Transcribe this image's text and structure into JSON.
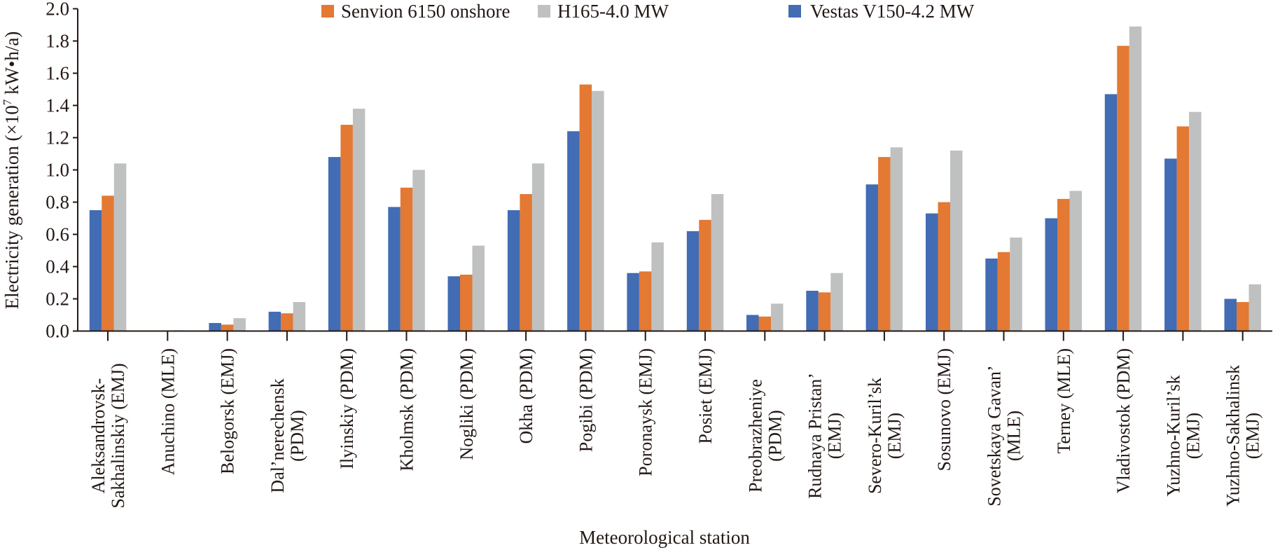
{
  "chart_data": {
    "type": "bar",
    "title": "",
    "xlabel": "Meteorological station",
    "ylabel_parts": {
      "prefix": "Electricity generation (×10",
      "exponent": "7",
      "suffix": " kW•h/a)"
    },
    "ylabel": "Electricity generation (×10^7 kW•h/a)",
    "ylim": [
      0,
      2.0
    ],
    "yticks": [
      "0.0",
      "0.2",
      "0.4",
      "0.6",
      "0.8",
      "1.0",
      "1.2",
      "1.4",
      "1.6",
      "1.8",
      "2.0"
    ],
    "grid": false,
    "legend_position": "top-center",
    "legend": [
      {
        "name": "Senvion 6150 onshore",
        "color": "#E37933"
      },
      {
        "name": "H165-4.0 MW",
        "color": "#BFC0C0"
      },
      {
        "name": "Vestas V150-4.2 MW",
        "color": "#426CB4"
      }
    ],
    "categories": [
      [
        "Aleksandrovsk-",
        "Sakhalinskiy (EMJ)"
      ],
      [
        "Anuchino (MLE)"
      ],
      [
        "Belogorsk (EMJ)"
      ],
      [
        "Dal’nerechensk",
        "(PDM)"
      ],
      [
        "Ilyinskiy (PDM)"
      ],
      [
        "Kholmsk (PDM)"
      ],
      [
        "Nogliki (PDM)"
      ],
      [
        "Okha (PDM)"
      ],
      [
        "Pogibi (PDM)"
      ],
      [
        "Poronaysk (EMJ)"
      ],
      [
        "Posiet (EMJ)"
      ],
      [
        "Preobrazheniye",
        "(PDM)"
      ],
      [
        "Rudnaya Pristan’",
        "(EMJ)"
      ],
      [
        "Severo-Kuril’sk",
        "(EMJ)"
      ],
      [
        "Sosunovo (EMJ)"
      ],
      [
        "Sovetskaya Gavan’",
        "(MLE)"
      ],
      [
        "Terney (MLE)"
      ],
      [
        "Vladivostok (PDM)"
      ],
      [
        "Yuzhno-Kuril’sk",
        "(EMJ)"
      ],
      [
        "Yuzhno-Sakhalinsk",
        "(EMJ)"
      ]
    ],
    "series": [
      {
        "name": "Vestas V150-4.2 MW",
        "color": "#426CB4",
        "values": [
          0.75,
          0.0,
          0.05,
          0.12,
          1.08,
          0.77,
          0.34,
          0.75,
          1.24,
          0.36,
          0.62,
          0.1,
          0.25,
          0.91,
          0.73,
          0.45,
          0.7,
          1.47,
          1.07,
          0.2
        ]
      },
      {
        "name": "Senvion 6150 onshore",
        "color": "#E37933",
        "values": [
          0.84,
          0.0,
          0.04,
          0.11,
          1.28,
          0.89,
          0.35,
          0.85,
          1.53,
          0.37,
          0.69,
          0.09,
          0.24,
          1.08,
          0.8,
          0.49,
          0.82,
          1.77,
          1.27,
          0.18
        ]
      },
      {
        "name": "H165-4.0 MW",
        "color": "#BFC0C0",
        "values": [
          1.04,
          0.005,
          0.08,
          0.18,
          1.38,
          1.0,
          0.53,
          1.04,
          1.49,
          0.55,
          0.85,
          0.17,
          0.36,
          1.14,
          1.12,
          0.58,
          0.87,
          1.89,
          1.36,
          0.29
        ]
      }
    ]
  }
}
